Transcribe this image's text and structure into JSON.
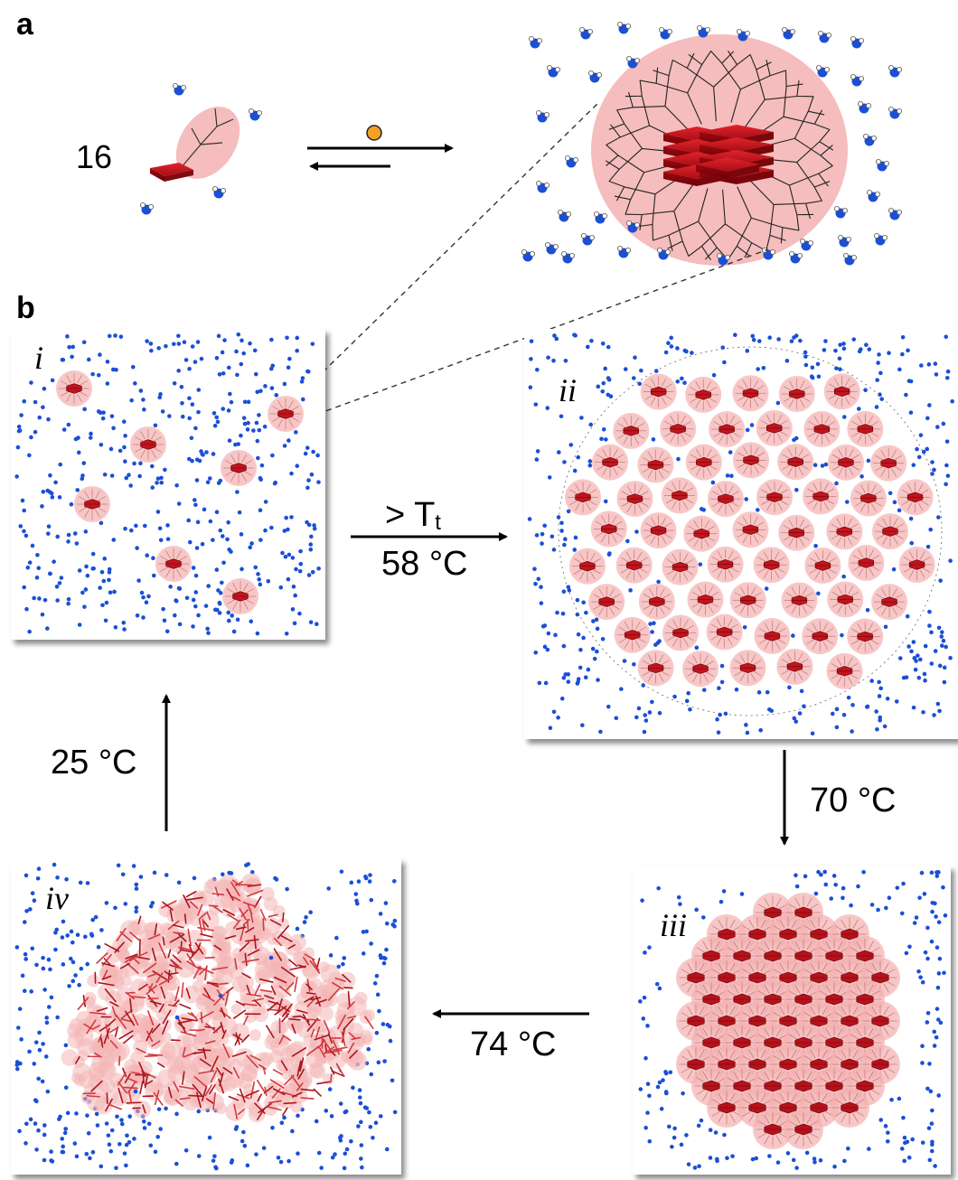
{
  "panel_labels": {
    "a": "a",
    "b": "b"
  },
  "monomer_count": "16",
  "conditions": {
    "transition_symbol": "> T",
    "transition_subscript": "t",
    "step1_temp": "58 °C",
    "step2_temp": "70 °C",
    "step3_temp": "74 °C",
    "step4_temp": "25 °C"
  },
  "stage_labels": [
    "i",
    "ii",
    "iii",
    "iv"
  ],
  "colors": {
    "water": "#1a4fd6",
    "aggregate_core": "#b5121b",
    "aggregate_shell": "#f4b6b6",
    "guest": "#f5a025",
    "frame_shadow": "#8a8a8a"
  }
}
